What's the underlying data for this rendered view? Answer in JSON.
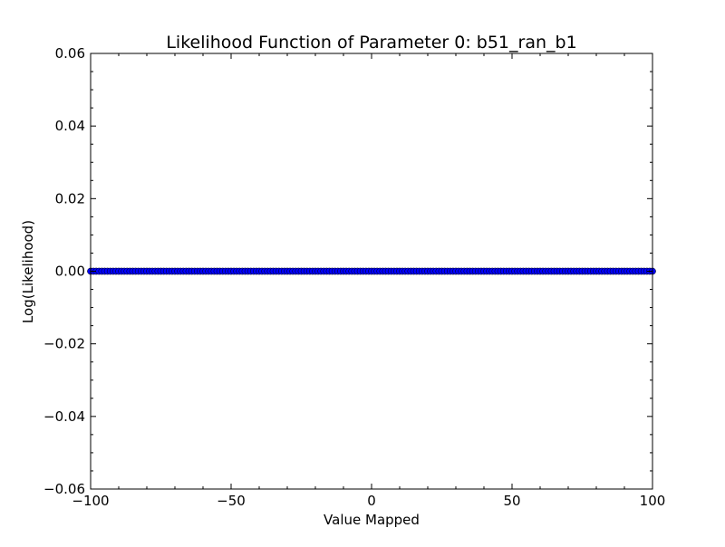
{
  "chart_data": {
    "type": "scatter",
    "title": "Likelihood Function of Parameter 0: b51_ran_b1",
    "xlabel": "Value Mapped",
    "ylabel": "Log(Likelihood)",
    "xlim": [
      -100,
      100
    ],
    "ylim": [
      -0.06,
      0.06
    ],
    "x_ticks": [
      -100,
      -50,
      0,
      50,
      100
    ],
    "x_tick_labels": [
      "−100",
      "−50",
      "0",
      "50",
      "100"
    ],
    "y_ticks": [
      -0.06,
      -0.04,
      -0.02,
      0.0,
      0.02,
      0.04,
      0.06
    ],
    "y_tick_labels": [
      "−0.06",
      "−0.04",
      "−0.02",
      "0.00",
      "0.02",
      "0.04",
      "0.06"
    ],
    "grid": false,
    "series": [
      {
        "marker_color": "#0000ff",
        "x_range": [
          -100,
          100
        ],
        "point_count": 201,
        "y_constant": 0.0
      }
    ]
  }
}
